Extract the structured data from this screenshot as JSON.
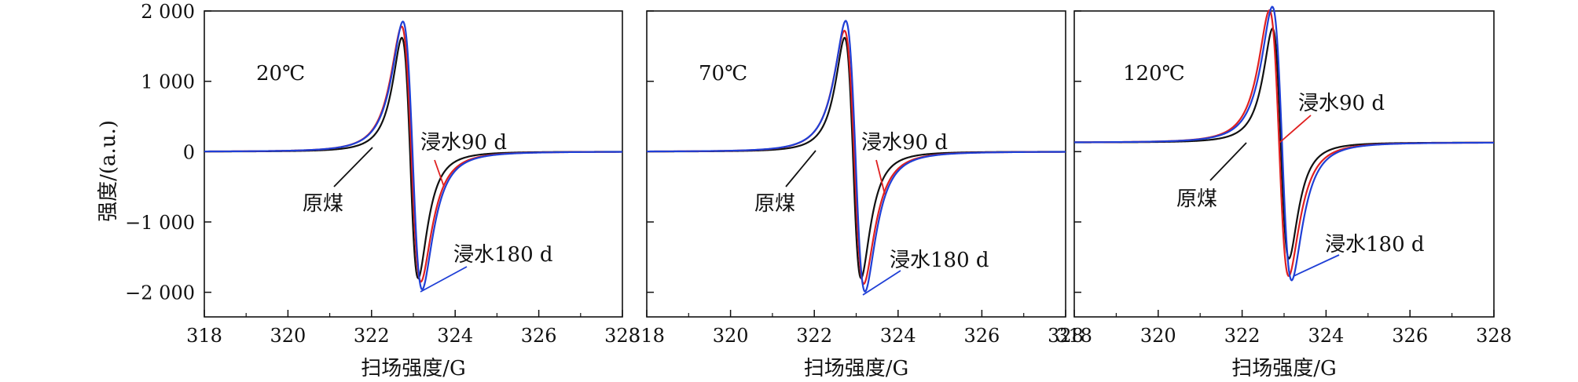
{
  "colors": {
    "raw": "#111111",
    "d90": "#e02020",
    "d180": "#1f3fd6",
    "axis": "#111111"
  },
  "ylabel": "强度/(a.u.)",
  "chart_data": [
    {
      "type": "line",
      "temp_label": "20℃",
      "xlabel": "扫场强度/G",
      "xlim": [
        318,
        328
      ],
      "ylim": [
        -2350,
        2000
      ],
      "xticks": [
        "318",
        "320",
        "322",
        "324",
        "326",
        "328"
      ],
      "yticks": [
        {
          "v": 2000,
          "t": "2 000"
        },
        {
          "v": 1000,
          "t": "1 000"
        },
        {
          "v": 0,
          "t": "0"
        },
        {
          "v": -1000,
          "t": "−1 000"
        },
        {
          "v": -2000,
          "t": "−2 000"
        }
      ],
      "series": [
        {
          "key": "raw",
          "name": "原煤",
          "baseline": 0,
          "center": 322.92,
          "width": 0.34,
          "pos": 1620,
          "neg": 1800
        },
        {
          "key": "d90",
          "name": "浸水90 d",
          "baseline": 0,
          "center": 322.95,
          "width": 0.4,
          "pos": 1780,
          "neg": 1850
        },
        {
          "key": "d180",
          "name": "浸水180 d",
          "baseline": 0,
          "center": 322.98,
          "width": 0.4,
          "pos": 1850,
          "neg": 1960
        }
      ],
      "annotations": [
        {
          "text": "原煤",
          "series": "raw"
        },
        {
          "text": "浸水90 d",
          "series": "d90"
        },
        {
          "text": "浸水180 d",
          "series": "d180"
        }
      ]
    },
    {
      "type": "line",
      "temp_label": "70℃",
      "xlabel": "扫场强度/G",
      "xlim": [
        318,
        328
      ],
      "ylim": [
        -2350,
        2000
      ],
      "xticks": [
        "318",
        "320",
        "322",
        "324",
        "326",
        "328"
      ],
      "yticks": [
        {
          "v": 2000,
          "t": ""
        },
        {
          "v": 1000,
          "t": ""
        },
        {
          "v": 0,
          "t": ""
        },
        {
          "v": -1000,
          "t": ""
        },
        {
          "v": -2000,
          "t": ""
        }
      ],
      "series": [
        {
          "key": "raw",
          "name": "原煤",
          "baseline": 0,
          "center": 322.92,
          "width": 0.34,
          "pos": 1620,
          "neg": 1800
        },
        {
          "key": "d90",
          "name": "浸水90 d",
          "baseline": 0,
          "center": 322.95,
          "width": 0.4,
          "pos": 1720,
          "neg": 1880
        },
        {
          "key": "d180",
          "name": "浸水180 d",
          "baseline": 0,
          "center": 322.98,
          "width": 0.4,
          "pos": 1860,
          "neg": 1990
        }
      ],
      "annotations": [
        {
          "text": "原煤",
          "series": "raw"
        },
        {
          "text": "浸水90 d",
          "series": "d90"
        },
        {
          "text": "浸水180 d",
          "series": "d180"
        }
      ]
    },
    {
      "type": "line",
      "temp_label": "120℃",
      "xlabel": "扫场强度/G",
      "xlim": [
        318,
        328
      ],
      "ylim": [
        -2350,
        2000
      ],
      "xticks": [
        "318",
        "320",
        "322",
        "324",
        "326",
        "328"
      ],
      "yticks": [
        {
          "v": 2000,
          "t": ""
        },
        {
          "v": 1000,
          "t": ""
        },
        {
          "v": 0,
          "t": ""
        },
        {
          "v": -1000,
          "t": ""
        },
        {
          "v": -2000,
          "t": ""
        }
      ],
      "series": [
        {
          "key": "raw",
          "name": "原煤",
          "baseline": 130,
          "center": 322.92,
          "width": 0.34,
          "pos": 1620,
          "neg": 1650
        },
        {
          "key": "d90",
          "name": "浸水90 d",
          "baseline": 130,
          "center": 322.88,
          "width": 0.4,
          "pos": 1880,
          "neg": 1900
        },
        {
          "key": "d180",
          "name": "浸水180 d",
          "baseline": 130,
          "center": 322.95,
          "width": 0.4,
          "pos": 1930,
          "neg": 1960
        }
      ],
      "annotations": [
        {
          "text": "原煤",
          "series": "raw"
        },
        {
          "text": "浸水90 d",
          "series": "d90"
        },
        {
          "text": "浸水180 d",
          "series": "d180"
        }
      ]
    }
  ]
}
